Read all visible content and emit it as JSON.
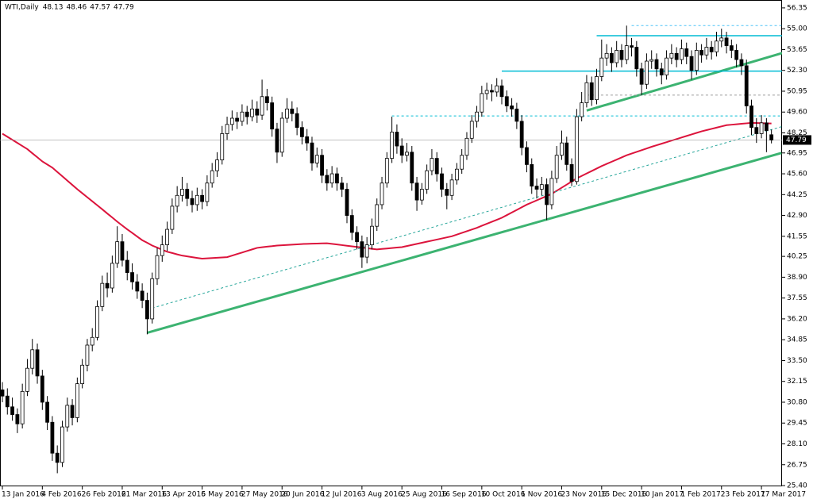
{
  "chart_data": {
    "type": "candlestick",
    "symbol": "WTI,Daily",
    "categories": [
      "13 Jan 2016",
      null,
      null,
      null,
      null,
      null,
      null,
      null,
      "4 Feb 2016",
      null,
      null,
      null,
      null,
      null,
      null,
      null,
      "26 Feb 2016",
      null,
      null,
      null,
      null,
      null,
      null,
      null,
      "21 Mar 2016",
      null,
      null,
      null,
      null,
      null,
      null,
      null,
      "13 Apr 2016",
      null,
      null,
      null,
      null,
      null,
      null,
      null,
      "5 May 2016",
      null,
      null,
      null,
      null,
      null,
      null,
      null,
      "27 May 2016",
      null,
      null,
      null,
      null,
      null,
      null,
      null,
      "20 Jun 2016",
      null,
      null,
      null,
      null,
      null,
      null,
      null,
      "12 Jul 2016",
      null,
      null,
      null,
      null,
      null,
      null,
      null,
      "3 Aug 2016",
      null,
      null,
      null,
      null,
      null,
      null,
      null,
      "25 Aug 2016",
      null,
      null,
      null,
      null,
      null,
      null,
      null,
      "16 Sep 2016",
      null,
      null,
      null,
      null,
      null,
      null,
      null,
      "10 Oct 2016",
      null,
      null,
      null,
      null,
      null,
      null,
      null,
      "1 Nov 2016",
      null,
      null,
      null,
      null,
      null,
      null,
      null,
      "23 Nov 2016",
      null,
      null,
      null,
      null,
      null,
      null,
      null,
      "15 Dec 2016",
      null,
      null,
      null,
      null,
      null,
      null,
      null,
      "10 Jan 2017",
      null,
      null,
      null,
      null,
      null,
      null,
      null,
      "1 Feb 2017",
      null,
      null,
      null,
      null,
      null,
      null,
      null,
      "23 Feb 2017",
      null,
      null,
      null,
      null,
      null,
      null,
      null,
      "17 Mar 2017",
      null,
      null
    ],
    "candles": [
      [
        31.6,
        32.1,
        30.8,
        31.2
      ],
      [
        31.2,
        31.7,
        30.0,
        30.5
      ],
      [
        30.5,
        31.1,
        29.6,
        30.0
      ],
      [
        30.0,
        30.4,
        28.8,
        29.4
      ],
      [
        29.4,
        32.0,
        29.1,
        31.5
      ],
      [
        31.5,
        33.6,
        31.2,
        33.0
      ],
      [
        33.0,
        34.9,
        32.6,
        34.2
      ],
      [
        34.2,
        34.6,
        32.0,
        32.5
      ],
      [
        32.5,
        32.9,
        30.3,
        30.8
      ],
      [
        30.8,
        31.2,
        29.0,
        29.5
      ],
      [
        29.5,
        29.9,
        27.0,
        27.5
      ],
      [
        27.5,
        28.0,
        26.2,
        26.9
      ],
      [
        26.9,
        29.6,
        26.6,
        29.2
      ],
      [
        29.2,
        31.1,
        28.9,
        30.6
      ],
      [
        30.6,
        31.0,
        29.3,
        29.8
      ],
      [
        29.8,
        32.4,
        29.5,
        32.0
      ],
      [
        32.0,
        33.6,
        31.7,
        33.2
      ],
      [
        33.2,
        34.9,
        32.8,
        34.5
      ],
      [
        34.5,
        35.6,
        34.1,
        35.0
      ],
      [
        35.0,
        37.4,
        34.8,
        37.0
      ],
      [
        37.0,
        39.0,
        36.7,
        38.5
      ],
      [
        38.5,
        39.2,
        37.6,
        38.2
      ],
      [
        38.2,
        40.3,
        37.9,
        39.8
      ],
      [
        39.8,
        42.2,
        39.5,
        41.2
      ],
      [
        41.2,
        41.7,
        39.6,
        40.0
      ],
      [
        40.0,
        40.6,
        38.7,
        39.2
      ],
      [
        39.2,
        39.8,
        38.1,
        38.6
      ],
      [
        38.6,
        39.1,
        37.5,
        38.0
      ],
      [
        38.0,
        38.5,
        36.9,
        37.4
      ],
      [
        37.4,
        37.9,
        35.2,
        36.2
      ],
      [
        36.2,
        39.2,
        35.9,
        38.8
      ],
      [
        38.8,
        40.8,
        38.4,
        40.3
      ],
      [
        40.3,
        41.6,
        39.9,
        41.0
      ],
      [
        41.0,
        42.5,
        40.6,
        42.0
      ],
      [
        42.0,
        44.0,
        41.7,
        43.5
      ],
      [
        43.5,
        44.8,
        43.1,
        44.2
      ],
      [
        44.2,
        45.4,
        43.8,
        44.6
      ],
      [
        44.6,
        45.0,
        43.5,
        44.0
      ],
      [
        44.0,
        44.5,
        43.1,
        43.6
      ],
      [
        43.6,
        44.7,
        43.2,
        44.2
      ],
      [
        44.2,
        44.6,
        43.3,
        43.8
      ],
      [
        43.8,
        45.5,
        43.5,
        45.0
      ],
      [
        45.0,
        46.3,
        44.7,
        45.8
      ],
      [
        45.8,
        47.0,
        45.4,
        46.5
      ],
      [
        46.5,
        48.7,
        46.2,
        48.2
      ],
      [
        48.2,
        49.3,
        47.8,
        48.8
      ],
      [
        48.8,
        49.7,
        48.4,
        49.2
      ],
      [
        49.2,
        49.6,
        48.5,
        49.0
      ],
      [
        49.0,
        50.1,
        48.7,
        49.6
      ],
      [
        49.6,
        50.0,
        48.8,
        49.3
      ],
      [
        49.3,
        50.4,
        49.0,
        49.8
      ],
      [
        49.8,
        50.3,
        48.9,
        49.4
      ],
      [
        49.4,
        51.7,
        49.1,
        50.6
      ],
      [
        50.6,
        51.1,
        49.7,
        50.2
      ],
      [
        50.2,
        50.6,
        48.0,
        48.5
      ],
      [
        48.5,
        48.9,
        46.3,
        47.0
      ],
      [
        47.0,
        49.6,
        46.7,
        49.2
      ],
      [
        49.2,
        50.5,
        48.9,
        49.8
      ],
      [
        49.8,
        50.3,
        49.0,
        49.5
      ],
      [
        49.5,
        49.9,
        48.1,
        48.6
      ],
      [
        48.6,
        49.0,
        47.5,
        48.0
      ],
      [
        48.0,
        48.5,
        47.1,
        47.6
      ],
      [
        47.6,
        48.0,
        45.8,
        46.3
      ],
      [
        46.3,
        47.3,
        46.0,
        46.8
      ],
      [
        46.8,
        47.2,
        45.0,
        45.5
      ],
      [
        45.5,
        45.9,
        44.5,
        45.0
      ],
      [
        45.0,
        46.1,
        44.7,
        45.6
      ],
      [
        45.6,
        46.0,
        44.5,
        45.0
      ],
      [
        45.0,
        45.4,
        44.1,
        44.6
      ],
      [
        44.6,
        45.0,
        42.4,
        42.9
      ],
      [
        42.9,
        43.3,
        41.3,
        41.8
      ],
      [
        41.8,
        42.2,
        40.7,
        41.2
      ],
      [
        41.2,
        41.6,
        39.5,
        40.2
      ],
      [
        40.2,
        41.5,
        39.8,
        41.0
      ],
      [
        41.0,
        42.7,
        40.7,
        42.2
      ],
      [
        42.2,
        44.0,
        41.9,
        43.6
      ],
      [
        43.6,
        45.4,
        43.3,
        45.0
      ],
      [
        45.0,
        47.0,
        44.7,
        46.6
      ],
      [
        46.6,
        49.3,
        46.3,
        48.3
      ],
      [
        48.3,
        48.8,
        46.9,
        47.4
      ],
      [
        47.4,
        47.9,
        46.3,
        46.8
      ],
      [
        46.8,
        47.6,
        46.4,
        47.0
      ],
      [
        47.0,
        47.4,
        44.5,
        45.0
      ],
      [
        45.0,
        45.4,
        43.2,
        43.9
      ],
      [
        43.9,
        45.0,
        43.6,
        44.6
      ],
      [
        44.6,
        46.2,
        44.3,
        45.8
      ],
      [
        45.8,
        47.2,
        45.5,
        46.6
      ],
      [
        46.6,
        47.0,
        45.1,
        45.6
      ],
      [
        45.6,
        46.0,
        44.1,
        44.6
      ],
      [
        44.6,
        45.0,
        43.3,
        44.2
      ],
      [
        44.2,
        45.6,
        43.9,
        45.2
      ],
      [
        45.2,
        46.3,
        44.9,
        45.9
      ],
      [
        45.9,
        47.2,
        45.6,
        46.8
      ],
      [
        46.8,
        48.3,
        46.5,
        47.9
      ],
      [
        47.9,
        49.4,
        47.6,
        49.0
      ],
      [
        49.0,
        50.0,
        48.6,
        49.6
      ],
      [
        49.6,
        51.3,
        49.3,
        50.8
      ],
      [
        50.8,
        51.5,
        50.4,
        51.0
      ],
      [
        51.0,
        51.4,
        50.3,
        50.9
      ],
      [
        50.9,
        51.8,
        50.6,
        51.3
      ],
      [
        51.3,
        51.7,
        50.1,
        50.6
      ],
      [
        50.6,
        51.0,
        49.6,
        50.0
      ],
      [
        50.0,
        50.5,
        49.3,
        49.8
      ],
      [
        49.8,
        50.2,
        48.5,
        49.0
      ],
      [
        49.0,
        49.4,
        46.8,
        47.3
      ],
      [
        47.3,
        47.7,
        45.7,
        46.2
      ],
      [
        46.2,
        46.6,
        44.3,
        44.8
      ],
      [
        44.8,
        45.3,
        44.0,
        44.6
      ],
      [
        44.6,
        45.4,
        44.2,
        44.9
      ],
      [
        44.9,
        45.3,
        42.6,
        43.6
      ],
      [
        43.6,
        45.8,
        43.3,
        45.3
      ],
      [
        45.3,
        47.4,
        45.0,
        46.8
      ],
      [
        46.8,
        48.4,
        46.5,
        47.6
      ],
      [
        47.6,
        48.0,
        45.8,
        46.2
      ],
      [
        46.2,
        46.6,
        44.8,
        45.1
      ],
      [
        45.1,
        49.8,
        44.9,
        49.3
      ],
      [
        49.3,
        50.9,
        49.0,
        50.2
      ],
      [
        50.2,
        52.0,
        49.9,
        51.5
      ],
      [
        51.5,
        51.9,
        50.0,
        50.4
      ],
      [
        50.4,
        52.4,
        50.1,
        51.9
      ],
      [
        51.9,
        54.3,
        51.6,
        53.1
      ],
      [
        53.1,
        54.0,
        52.6,
        53.4
      ],
      [
        53.4,
        53.8,
        52.2,
        52.8
      ],
      [
        52.8,
        54.2,
        52.5,
        53.6
      ],
      [
        53.6,
        54.0,
        52.5,
        53.0
      ],
      [
        53.0,
        55.2,
        52.7,
        53.9
      ],
      [
        53.9,
        54.4,
        53.2,
        53.8
      ],
      [
        53.8,
        54.2,
        51.9,
        52.4
      ],
      [
        52.4,
        52.8,
        50.7,
        51.4
      ],
      [
        51.4,
        53.4,
        51.1,
        52.9
      ],
      [
        52.9,
        53.6,
        52.4,
        53.0
      ],
      [
        53.0,
        53.4,
        51.9,
        52.4
      ],
      [
        52.4,
        52.8,
        51.4,
        52.0
      ],
      [
        52.0,
        53.6,
        51.7,
        53.1
      ],
      [
        53.1,
        54.0,
        52.7,
        53.4
      ],
      [
        53.4,
        53.8,
        52.5,
        53.0
      ],
      [
        53.0,
        54.3,
        52.7,
        53.7
      ],
      [
        53.7,
        54.1,
        52.7,
        53.2
      ],
      [
        53.2,
        53.6,
        51.7,
        52.3
      ],
      [
        52.3,
        54.1,
        52.0,
        53.6
      ],
      [
        53.6,
        54.0,
        52.8,
        53.3
      ],
      [
        53.3,
        54.4,
        53.0,
        53.8
      ],
      [
        53.8,
        54.2,
        53.0,
        53.5
      ],
      [
        53.5,
        54.8,
        53.2,
        54.2
      ],
      [
        54.2,
        55.0,
        53.8,
        54.4
      ],
      [
        54.4,
        54.8,
        53.4,
        53.9
      ],
      [
        53.9,
        54.3,
        53.1,
        53.6
      ],
      [
        53.6,
        54.0,
        52.5,
        53.0
      ],
      [
        53.0,
        53.4,
        52.0,
        52.6
      ],
      [
        52.6,
        53.0,
        49.5,
        50.0
      ],
      [
        50.0,
        50.4,
        48.1,
        48.6
      ],
      [
        48.6,
        49.2,
        47.6,
        48.2
      ],
      [
        48.2,
        49.4,
        47.9,
        48.9
      ],
      [
        48.9,
        49.2,
        47.0,
        48.4
      ],
      [
        48.13,
        48.46,
        47.57,
        47.79
      ]
    ],
    "moving_average": {
      "color": "#dc143c",
      "values": [
        48.2,
        48.0,
        47.8,
        47.6,
        47.4,
        47.2,
        46.93,
        46.67,
        46.4,
        46.2,
        46.0,
        45.72,
        45.44,
        45.16,
        44.88,
        44.6,
        44.34,
        44.08,
        43.82,
        43.56,
        43.3,
        43.03,
        42.77,
        42.5,
        42.25,
        42.0,
        41.77,
        41.53,
        41.3,
        41.13,
        40.95,
        40.82,
        40.68,
        40.55,
        40.47,
        40.38,
        40.3,
        40.25,
        40.2,
        40.15,
        40.1,
        40.12,
        40.14,
        40.16,
        40.18,
        40.2,
        40.3,
        40.4,
        40.5,
        40.6,
        40.7,
        40.8,
        40.84,
        40.88,
        40.91,
        40.95,
        40.97,
        40.99,
        41.01,
        41.03,
        41.05,
        41.06,
        41.07,
        41.08,
        41.09,
        41.1,
        41.06,
        41.02,
        40.98,
        40.94,
        40.9,
        40.86,
        40.82,
        40.78,
        40.74,
        40.7,
        40.73,
        40.76,
        40.79,
        40.82,
        40.85,
        40.92,
        40.99,
        41.06,
        41.13,
        41.2,
        41.27,
        41.34,
        41.41,
        41.48,
        41.55,
        41.66,
        41.77,
        41.88,
        41.99,
        42.1,
        42.23,
        42.36,
        42.49,
        42.62,
        42.75,
        42.92,
        43.09,
        43.26,
        43.43,
        43.6,
        43.74,
        43.88,
        44.02,
        44.16,
        44.3,
        44.5,
        44.7,
        44.9,
        45.1,
        45.3,
        45.46,
        45.62,
        45.78,
        45.94,
        46.1,
        46.24,
        46.38,
        46.52,
        46.66,
        46.8,
        46.91,
        47.02,
        47.13,
        47.24,
        47.35,
        47.45,
        47.55,
        47.65,
        47.75,
        47.85,
        47.95,
        48.05,
        48.15,
        48.25,
        48.35,
        48.43,
        48.51,
        48.59,
        48.67,
        48.75,
        48.78,
        48.81,
        48.84,
        48.87,
        48.9,
        48.89,
        48.88,
        48.87,
        48.86
      ]
    },
    "lines": [
      {
        "color": "#3cb371",
        "dash": false,
        "width": 3,
        "from": [
          29,
          35.3
        ],
        "to": [
          156,
          46.95
        ]
      },
      {
        "color": "#3cb371",
        "dash": false,
        "width": 3,
        "from": [
          117,
          49.7
        ],
        "to": [
          157,
          53.5
        ]
      },
      {
        "color": "#00bcd4",
        "dash": false,
        "width": 1.5,
        "from": [
          119,
          54.55
        ],
        "to": [
          157,
          54.55
        ]
      },
      {
        "color": "#00bcd4",
        "dash": false,
        "width": 1.5,
        "from": [
          100,
          52.25
        ],
        "to": [
          157,
          52.25
        ]
      },
      {
        "color": "#4fc3f7",
        "dash": true,
        "width": 1,
        "from": [
          126,
          55.2
        ],
        "to": [
          156,
          55.2
        ]
      },
      {
        "color": "#9e9e9e",
        "dash": true,
        "width": 1,
        "from": [
          117,
          50.7
        ],
        "to": [
          156,
          50.7
        ]
      },
      {
        "color": "#00bcd4",
        "dash": true,
        "width": 1,
        "from": [
          78,
          49.35
        ],
        "to": [
          156,
          49.35
        ]
      },
      {
        "color": "#26a69a",
        "dash": true,
        "width": 1,
        "from": [
          30,
          36.9
        ],
        "to": [
          156,
          48.65
        ]
      }
    ],
    "ylim": [
      25.35,
      56.86
    ],
    "yticks": [
      56.35,
      {
        "value": 55,
        "label": "55.00"
      },
      53.65,
      {
        "value": 52.3,
        "label": "52.30"
      },
      50.95,
      {
        "value": 49.6,
        "label": "49.60"
      },
      48.25,
      46.95,
      {
        "value": 45.6,
        "label": "45.60"
      },
      44.25,
      {
        "value": 42.9,
        "label": "42.90"
      },
      41.55,
      40.25,
      {
        "value": 38.9,
        "label": "38.90"
      },
      37.55,
      {
        "value": 36.2,
        "label": "36.20"
      },
      34.85,
      {
        "value": 33.5,
        "label": "33.50"
      },
      32.15,
      {
        "value": 30.8,
        "label": "30.80"
      },
      29.45,
      {
        "value": 28.1,
        "label": "28.10"
      },
      26.75,
      {
        "value": 25.4,
        "label": "25.40"
      }
    ]
  }
}
